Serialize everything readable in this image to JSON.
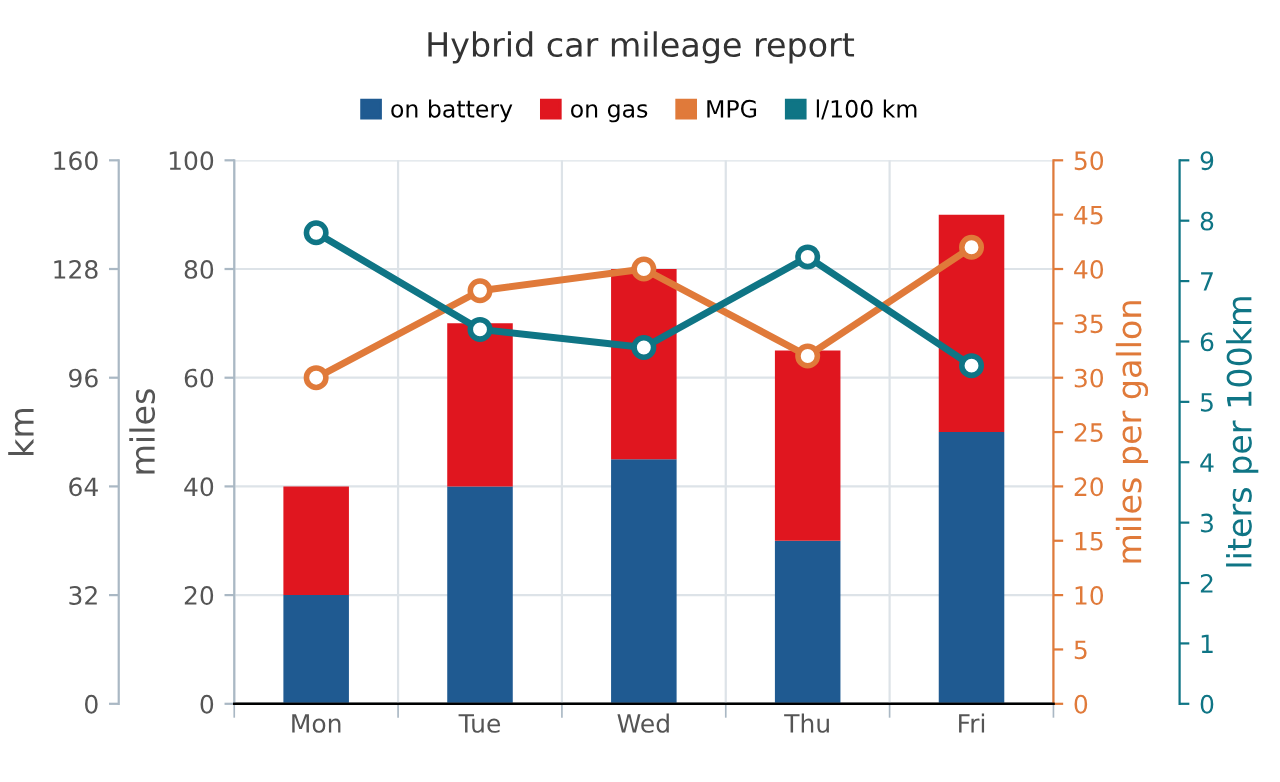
{
  "chart_data": {
    "type": "bar",
    "title": "Hybrid car mileage report",
    "stacked": true,
    "categories": [
      "Mon",
      "Tue",
      "Wed",
      "Thu",
      "Fri"
    ],
    "series": [
      {
        "name": "on battery",
        "color": "#1f5a91",
        "values": [
          20,
          40,
          45,
          30,
          50
        ]
      },
      {
        "name": "on gas",
        "color": "#e0161f",
        "values": [
          20,
          30,
          35,
          35,
          40
        ]
      },
      {
        "name": "MPG",
        "type": "line",
        "axis": "y2",
        "color": "#e07a3a",
        "marker": "circle",
        "values": [
          30,
          38,
          40,
          32,
          42
        ]
      },
      {
        "name": "l/100 km",
        "type": "line",
        "axis": "y3",
        "color": "#0f7585",
        "marker": "circle",
        "values": [
          7.8,
          6.2,
          5.9,
          7.4,
          5.6
        ]
      }
    ],
    "ylabel": "miles",
    "ylim": [
      0,
      100
    ],
    "yticks": [
      0,
      20,
      40,
      60,
      80,
      100
    ],
    "y2label": "miles per gallon",
    "y2lim": [
      0,
      50
    ],
    "y2ticks": [
      0,
      5,
      10,
      15,
      20,
      25,
      30,
      35,
      40,
      45,
      50
    ],
    "y3label": "liters per 100km",
    "y3lim": [
      0,
      9
    ],
    "y3ticks": [
      0,
      1,
      2,
      3,
      4,
      5,
      6,
      7,
      8,
      9
    ],
    "annotations": [
      "km",
      "0",
      "32",
      "64",
      "96",
      "128",
      "160"
    ],
    "grid": true,
    "legend": "top"
  }
}
